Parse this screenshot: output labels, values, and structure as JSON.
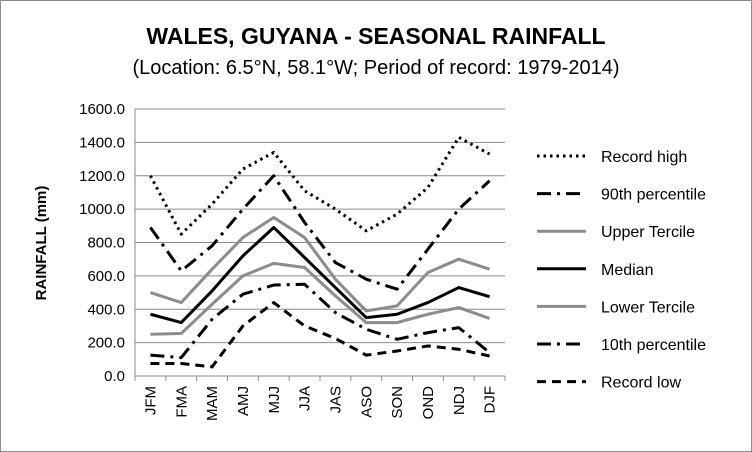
{
  "chart_data": {
    "type": "line",
    "title": "WALES, GUYANA - SEASONAL RAINFALL",
    "subtitle": "(Location: 6.5°N, 58.1°W; Period of record: 1979-2014)",
    "ylabel": "RAINFALL (mm)",
    "xlabel": "",
    "ylim": [
      0,
      1600
    ],
    "yticks": [
      "0.0",
      "200.0",
      "400.0",
      "600.0",
      "800.0",
      "1000.0",
      "1200.0",
      "1400.0",
      "1600.0"
    ],
    "grid": true,
    "legend_position": "right",
    "categories": [
      "JFM",
      "FMA",
      "MAM",
      "AMJ",
      "MJJ",
      "JJA",
      "JAS",
      "ASO",
      "SON",
      "OND",
      "NDJ",
      "DJF"
    ],
    "series": [
      {
        "name": "Record high",
        "style": "dotted",
        "color": "#000000",
        "values": [
          1200,
          850,
          1030,
          1240,
          1340,
          1110,
          1000,
          870,
          970,
          1130,
          1430,
          1330
        ]
      },
      {
        "name": "90th percentile",
        "style": "dashdot",
        "color": "#000000",
        "values": [
          890,
          630,
          780,
          1000,
          1200,
          920,
          680,
          580,
          520,
          760,
          1000,
          1170
        ]
      },
      {
        "name": "Upper Tercile",
        "style": "solid",
        "color": "#8c8c8c",
        "values": [
          500,
          440,
          640,
          830,
          950,
          830,
          580,
          390,
          420,
          620,
          700,
          640
        ]
      },
      {
        "name": "Median",
        "style": "solid",
        "color": "#000000",
        "values": [
          370,
          320,
          510,
          720,
          890,
          710,
          530,
          350,
          370,
          440,
          530,
          475
        ]
      },
      {
        "name": "Lower Tercile",
        "style": "solid",
        "color": "#8c8c8c",
        "values": [
          250,
          255,
          430,
          600,
          675,
          650,
          480,
          320,
          320,
          370,
          410,
          345
        ]
      },
      {
        "name": "10th percentile",
        "style": "dashdot",
        "color": "#000000",
        "values": [
          125,
          110,
          340,
          490,
          545,
          550,
          380,
          280,
          220,
          260,
          290,
          140
        ]
      },
      {
        "name": "Record low",
        "style": "dashed",
        "color": "#000000",
        "values": [
          75,
          75,
          55,
          300,
          440,
          300,
          225,
          125,
          150,
          180,
          160,
          120
        ]
      }
    ]
  }
}
